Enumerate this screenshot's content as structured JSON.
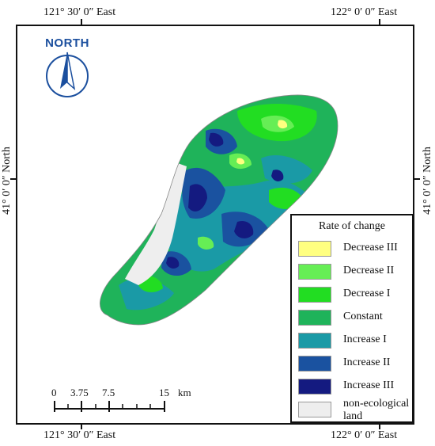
{
  "coords": {
    "top_left": "121° 30′ 0″ East",
    "top_right": "122° 0′ 0″ East",
    "bottom_left": "121° 30′ 0″ East",
    "bottom_right": "122° 0′ 0″ East",
    "left": "41° 0′ 0″ North",
    "right": "41° 0′ 0″ North"
  },
  "north_arrow": {
    "label": "NORTH",
    "icon": "north-arrow-icon"
  },
  "legend": {
    "title": "Rate of change",
    "items": [
      {
        "label": "Decrease III",
        "color": "#ffff80"
      },
      {
        "label": "Decrease II",
        "color": "#66ee55"
      },
      {
        "label": "Decrease I",
        "color": "#22dd22"
      },
      {
        "label": "Constant",
        "color": "#1fb35a"
      },
      {
        "label": "Increase I",
        "color": "#1a9aa6"
      },
      {
        "label": "Increase II",
        "color": "#1a52a0"
      },
      {
        "label": "Increase III",
        "color": "#141a80"
      },
      {
        "label": "non-ecological land",
        "color": "#eeeeee"
      }
    ]
  },
  "scale_bar": {
    "ticks": [
      "0",
      "3.75",
      "7.5",
      "15"
    ],
    "unit": "km"
  }
}
